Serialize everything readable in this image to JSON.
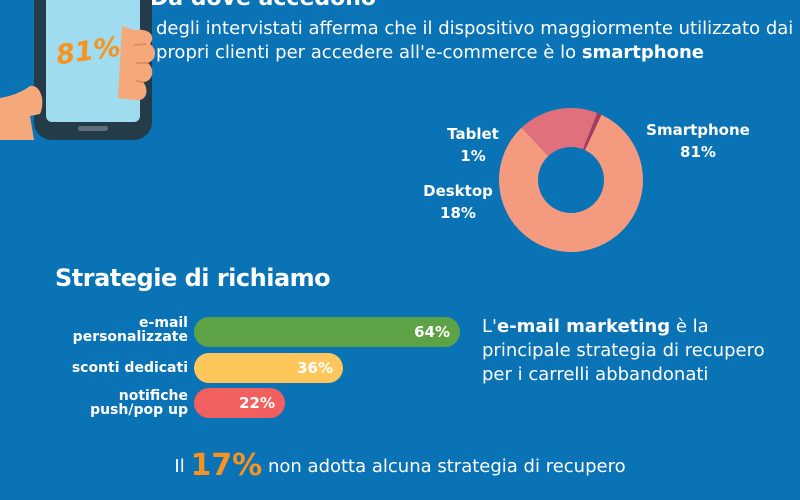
{
  "header": {
    "heading": "Da dove accedono",
    "badge_value": "81%",
    "intro_before": "degli intervistati afferma che il dispositivo maggiormente utilizzato dai propri clienti per accedere all'e-commerce è lo ",
    "intro_bold": "smartphone"
  },
  "colors": {
    "background": "#0a73b5",
    "smartphone": "#f49b7f",
    "desktop": "#e0707c",
    "tablet": "#a83a5e",
    "email": "#5da346",
    "sconti": "#ffc65c",
    "notifiche": "#f25f5f",
    "highlight": "#f7931e"
  },
  "chart_data": [
    {
      "type": "pie",
      "donut": true,
      "labels": [
        "Smartphone",
        "Desktop",
        "Tablet"
      ],
      "values": [
        81,
        18,
        1
      ],
      "value_labels": [
        "81%",
        "18%",
        "1%"
      ]
    },
    {
      "type": "bar",
      "orientation": "horizontal",
      "title": "Strategie di richiamo",
      "categories": [
        "e-mail personalizzate",
        "sconti dedicati",
        "notifiche push/pop up"
      ],
      "values": [
        64,
        36,
        22
      ],
      "value_labels": [
        "64%",
        "36%",
        "22%"
      ],
      "xlim": [
        0,
        100
      ]
    }
  ],
  "strategy_note": {
    "prefix": "L'",
    "bold": "e-mail marketing",
    "suffix": " è la principale strategia di recupero per i carrelli abbandonati"
  },
  "footer": {
    "prefix": "Il",
    "value": "17%",
    "suffix": "non adotta alcuna strategia di recupero"
  }
}
